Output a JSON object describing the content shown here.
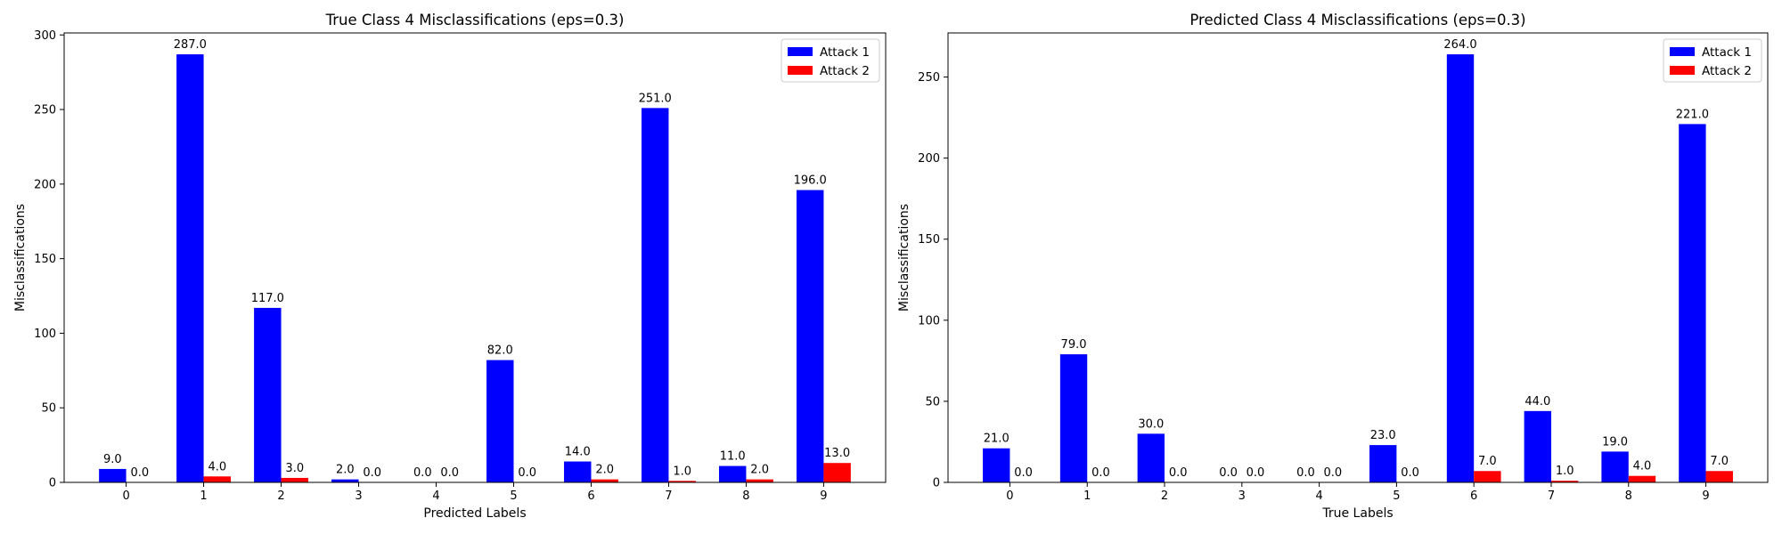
{
  "chart_data": [
    {
      "type": "bar",
      "title": "True Class 4 Misclassifications (eps=0.3)",
      "xlabel": "Predicted Labels",
      "ylabel": "Misclassifications",
      "categories": [
        "0",
        "1",
        "2",
        "3",
        "4",
        "5",
        "6",
        "7",
        "8",
        "9"
      ],
      "series": [
        {
          "name": "Attack 1",
          "color": "#0000ff",
          "values": [
            9,
            287,
            117,
            2,
            0,
            82,
            14,
            251,
            11,
            196
          ],
          "labels": [
            "9.0",
            "287.0",
            "117.0",
            "2.0",
            "0.0",
            "82.0",
            "14.0",
            "251.0",
            "11.0",
            "196.0"
          ]
        },
        {
          "name": "Attack 2",
          "color": "#ff0000",
          "values": [
            0,
            4,
            3,
            0,
            0,
            0,
            2,
            1,
            2,
            13
          ],
          "labels": [
            "0.0",
            "4.0",
            "3.0",
            "0.0",
            "0.0",
            "0.0",
            "2.0",
            "1.0",
            "2.0",
            "13.0"
          ]
        }
      ],
      "ylim": [
        0,
        301.35
      ],
      "yticks": [
        0,
        50,
        100,
        150,
        200,
        250,
        300
      ],
      "legend": "top-right",
      "grid": false
    },
    {
      "type": "bar",
      "title": "Predicted Class 4 Misclassifications (eps=0.3)",
      "xlabel": "True Labels",
      "ylabel": "Misclassifications",
      "categories": [
        "0",
        "1",
        "2",
        "3",
        "4",
        "5",
        "6",
        "7",
        "8",
        "9"
      ],
      "series": [
        {
          "name": "Attack 1",
          "color": "#0000ff",
          "values": [
            21,
            79,
            30,
            0,
            0,
            23,
            264,
            44,
            19,
            221
          ],
          "labels": [
            "21.0",
            "79.0",
            "30.0",
            "0.0",
            "0.0",
            "23.0",
            "264.0",
            "44.0",
            "19.0",
            "221.0"
          ]
        },
        {
          "name": "Attack 2",
          "color": "#ff0000",
          "values": [
            0,
            0,
            0,
            0,
            0,
            0,
            7,
            1,
            4,
            7
          ],
          "labels": [
            "0.0",
            "0.0",
            "0.0",
            "0.0",
            "0.0",
            "0.0",
            "7.0",
            "1.0",
            "4.0",
            "7.0"
          ]
        }
      ],
      "ylim": [
        0,
        277.2
      ],
      "yticks": [
        0,
        50,
        100,
        150,
        200,
        250
      ],
      "legend": "top-right",
      "grid": false
    }
  ]
}
